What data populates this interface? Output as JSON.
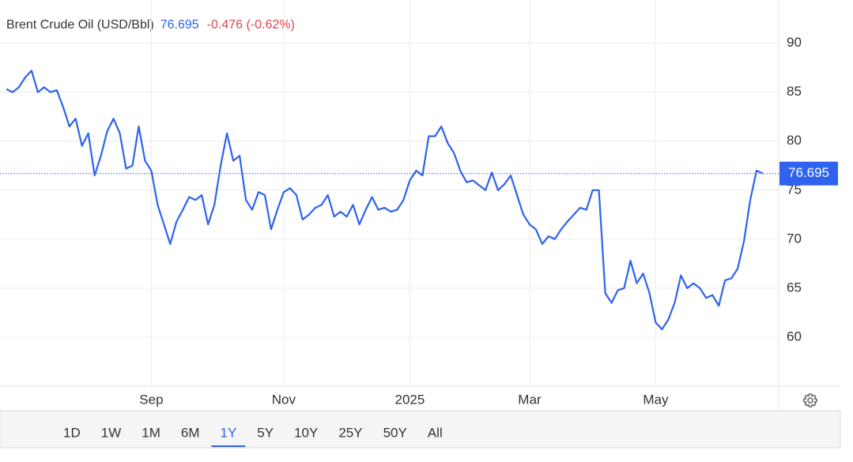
{
  "chart_data": {
    "type": "line",
    "title": "Brent Crude Oil (USD/Bbl)",
    "change": "-0.476 (-0.62%)",
    "categories": [
      null,
      null,
      null,
      null,
      null,
      null,
      null,
      null,
      null,
      null,
      null,
      null,
      null,
      null,
      null,
      null,
      null,
      null,
      null,
      null,
      null,
      null,
      null,
      "Sep",
      null,
      null,
      null,
      null,
      null,
      null,
      null,
      null,
      null,
      null,
      null,
      null,
      null,
      null,
      null,
      null,
      null,
      null,
      null,
      null,
      "Nov",
      null,
      null,
      null,
      null,
      null,
      null,
      null,
      null,
      null,
      null,
      null,
      null,
      null,
      null,
      null,
      null,
      null,
      null,
      null,
      "2025",
      null,
      null,
      null,
      null,
      null,
      null,
      null,
      null,
      null,
      null,
      null,
      null,
      null,
      null,
      null,
      null,
      null,
      null,
      "Mar",
      null,
      null,
      null,
      null,
      null,
      null,
      null,
      null,
      null,
      null,
      null,
      null,
      null,
      null,
      null,
      null,
      null,
      null,
      null,
      "May",
      null,
      null,
      null,
      null,
      null,
      null,
      null,
      null,
      null,
      null,
      null,
      null,
      null,
      null,
      null,
      null,
      null
    ],
    "series": [
      {
        "name": "Brent Crude Oil",
        "color": "#2f62ee",
        "values": [
          85.3,
          85.0,
          85.5,
          86.5,
          87.2,
          85.0,
          85.5,
          85.0,
          85.2,
          83.5,
          81.5,
          82.3,
          79.5,
          80.8,
          76.5,
          78.5,
          81.0,
          82.3,
          80.8,
          77.2,
          77.5,
          81.5,
          78.0,
          77.0,
          73.5,
          71.5,
          69.5,
          71.8,
          73.0,
          74.3,
          74.0,
          74.5,
          71.5,
          73.5,
          77.5,
          80.8,
          78.0,
          78.5,
          74.0,
          73.0,
          74.8,
          74.5,
          71.0,
          73.0,
          74.8,
          75.2,
          74.5,
          72.0,
          72.5,
          73.2,
          73.5,
          74.5,
          72.3,
          72.8,
          72.3,
          73.5,
          71.5,
          73.0,
          74.3,
          73.0,
          73.2,
          72.8,
          73.0,
          74.0,
          76.0,
          77.0,
          76.5,
          80.5,
          80.5,
          81.5,
          79.8,
          78.8,
          77.0,
          75.8,
          76.0,
          75.5,
          75.0,
          76.8,
          75.0,
          75.6,
          76.5,
          74.5,
          72.5,
          71.5,
          71.0,
          69.5,
          70.3,
          70.0,
          71.0,
          71.8,
          72.5,
          73.2,
          73.0,
          75.0,
          75.0,
          64.5,
          63.5,
          64.8,
          65.0,
          67.8,
          65.5,
          66.5,
          64.5,
          61.5,
          60.8,
          61.8,
          63.5,
          66.3,
          65.0,
          65.5,
          65.0,
          64.0,
          64.3,
          63.2,
          65.8,
          66.0,
          67.0,
          69.8,
          74.0,
          77.0,
          76.695
        ]
      }
    ],
    "ylim": [
      55,
      94.4
    ],
    "yticks": [
      60,
      65,
      70,
      75,
      80,
      85,
      90
    ],
    "grid": true,
    "range_buttons": [
      "1D",
      "1W",
      "1M",
      "6M",
      "1Y",
      "5Y",
      "10Y",
      "25Y",
      "50Y",
      "All"
    ],
    "selected_range": "1Y"
  }
}
